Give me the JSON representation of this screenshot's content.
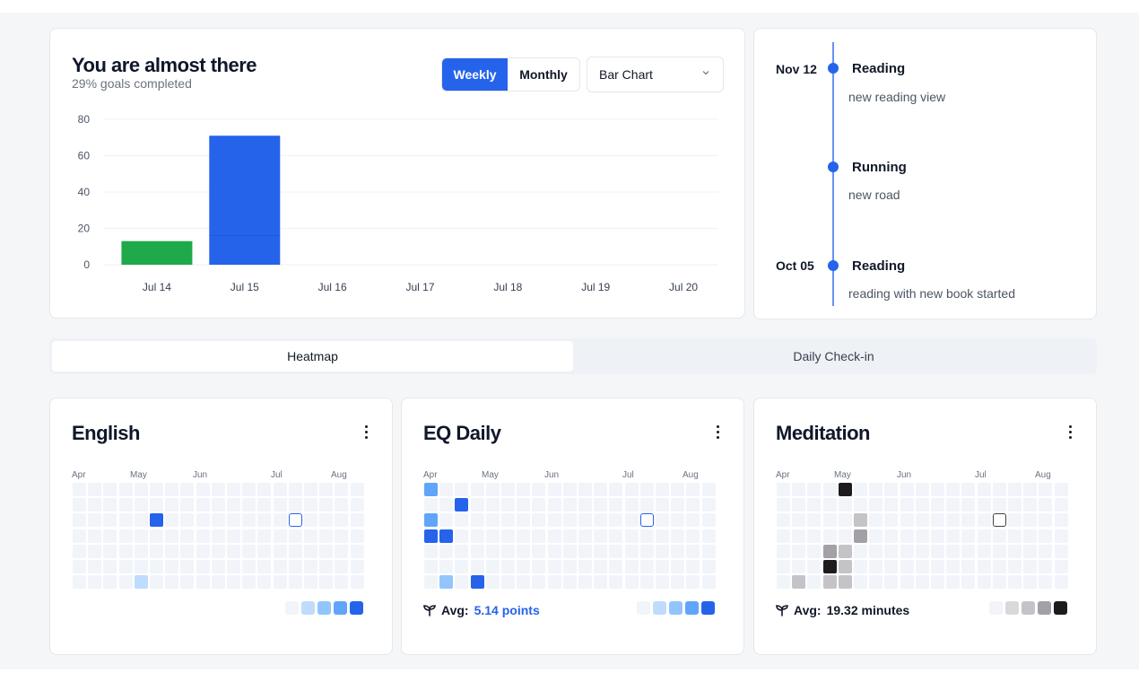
{
  "goal": {
    "title": "You are almost there",
    "subtitle": "29% goals completed",
    "period_tabs": [
      "Weekly",
      "Monthly"
    ],
    "active_period": "Weekly",
    "chart_select": "Bar Chart"
  },
  "chart_data": {
    "type": "bar",
    "categories": [
      "Jul 14",
      "Jul 15",
      "Jul 16",
      "Jul 17",
      "Jul 18",
      "Jul 19",
      "Jul 20"
    ],
    "series": [
      {
        "values": [
          13,
          0,
          0,
          0,
          0,
          0,
          0
        ],
        "color": "#1fa94a"
      },
      {
        "values": [
          0,
          71,
          0,
          0,
          0,
          0,
          0
        ],
        "color": "#2563eb"
      }
    ],
    "ylim": [
      0,
      80
    ],
    "yticks": [
      0,
      20,
      40,
      60,
      80
    ],
    "grid": true
  },
  "timeline": [
    {
      "date": "Nov 12",
      "title": "Reading",
      "desc": "new reading view"
    },
    {
      "date": "",
      "title": "Running",
      "desc": "new road"
    },
    {
      "date": "Oct 05",
      "title": "Reading",
      "desc": "reading with new book started"
    }
  ],
  "view_tabs": [
    "Heatmap",
    "Daily Check-in"
  ],
  "active_view": "Heatmap",
  "heatmaps": [
    {
      "title": "English",
      "months": [
        "Apr",
        "May",
        "Jun",
        "Jul",
        "Aug"
      ],
      "avg_label": "",
      "avg_value": "",
      "scale": [
        "#f1f4f9",
        "#bfdbfe",
        "#93c5fd",
        "#60a5fa",
        "#2563eb"
      ],
      "filled": [
        {
          "col": 5,
          "row": 2,
          "level": 4
        },
        {
          "col": 4,
          "row": 6,
          "level": 1
        },
        {
          "col": 14,
          "row": 2,
          "level": -1
        }
      ]
    },
    {
      "title": "EQ Daily",
      "months": [
        "Apr",
        "May",
        "Jun",
        "Jul",
        "Aug"
      ],
      "avg_label": "Avg:",
      "avg_value": "5.14 points",
      "scale": [
        "#f1f4f9",
        "#bfdbfe",
        "#93c5fd",
        "#60a5fa",
        "#2563eb"
      ],
      "filled": [
        {
          "col": 0,
          "row": 0,
          "level": 3
        },
        {
          "col": 2,
          "row": 1,
          "level": 4
        },
        {
          "col": 0,
          "row": 2,
          "level": 3
        },
        {
          "col": 0,
          "row": 3,
          "level": 4
        },
        {
          "col": 1,
          "row": 3,
          "level": 4
        },
        {
          "col": 1,
          "row": 6,
          "level": 2
        },
        {
          "col": 3,
          "row": 6,
          "level": 4
        },
        {
          "col": 14,
          "row": 2,
          "level": -1
        }
      ]
    },
    {
      "title": "Meditation",
      "months": [
        "Apr",
        "May",
        "Jun",
        "Jul",
        "Aug"
      ],
      "avg_label": "Avg:",
      "avg_value": "19.32 minutes",
      "scale": [
        "#f1f4f9",
        "#d9d9dc",
        "#c4c4c8",
        "#a1a1a6",
        "#1c1c1e"
      ],
      "filled": [
        {
          "col": 4,
          "row": 0,
          "level": 4
        },
        {
          "col": 5,
          "row": 2,
          "level": 2
        },
        {
          "col": 5,
          "row": 3,
          "level": 3
        },
        {
          "col": 3,
          "row": 4,
          "level": 3
        },
        {
          "col": 4,
          "row": 4,
          "level": 2
        },
        {
          "col": 3,
          "row": 5,
          "level": 4
        },
        {
          "col": 4,
          "row": 5,
          "level": 2
        },
        {
          "col": 1,
          "row": 6,
          "level": 2
        },
        {
          "col": 3,
          "row": 6,
          "level": 2
        },
        {
          "col": 4,
          "row": 6,
          "level": 2
        },
        {
          "col": 14,
          "row": 2,
          "level": -1
        }
      ]
    }
  ]
}
